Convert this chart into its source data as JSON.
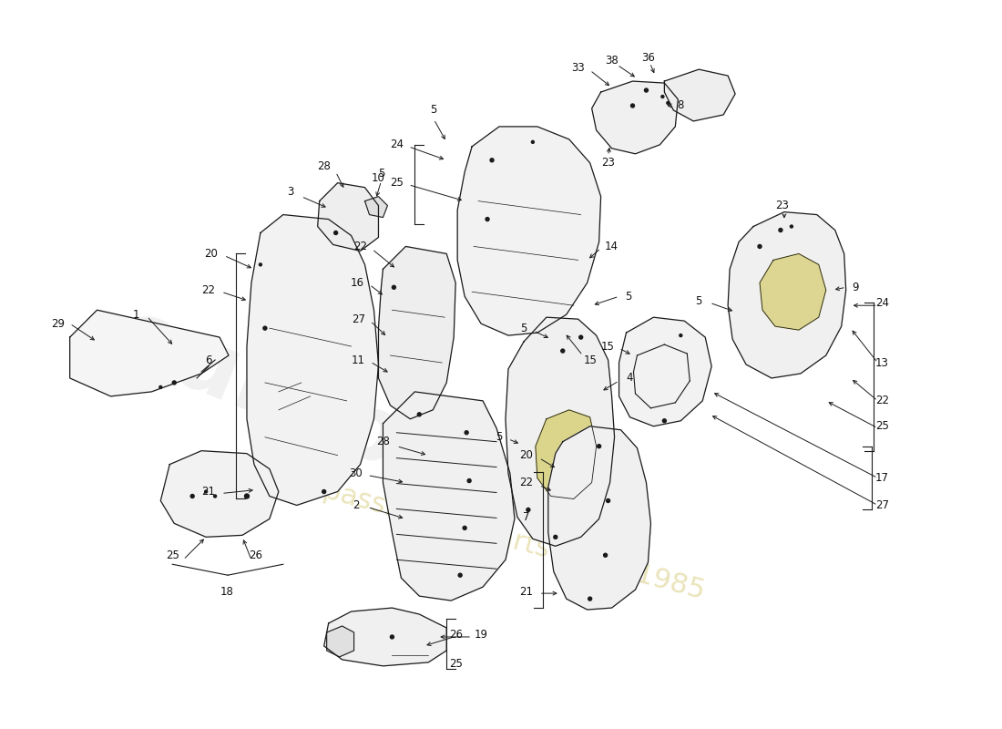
{
  "background_color": "#ffffff",
  "line_color": "#1a1a1a",
  "fill_color": "#f8f8f8",
  "fill_color2": "#ffffff",
  "yellow_fill": "#d4cc6a",
  "text_color": "#111111",
  "font_size": 8.5,
  "fig_width": 11.0,
  "fig_height": 8.0,
  "watermark_color": "#cccccc",
  "watermark_subcolor": "#c8b84a"
}
